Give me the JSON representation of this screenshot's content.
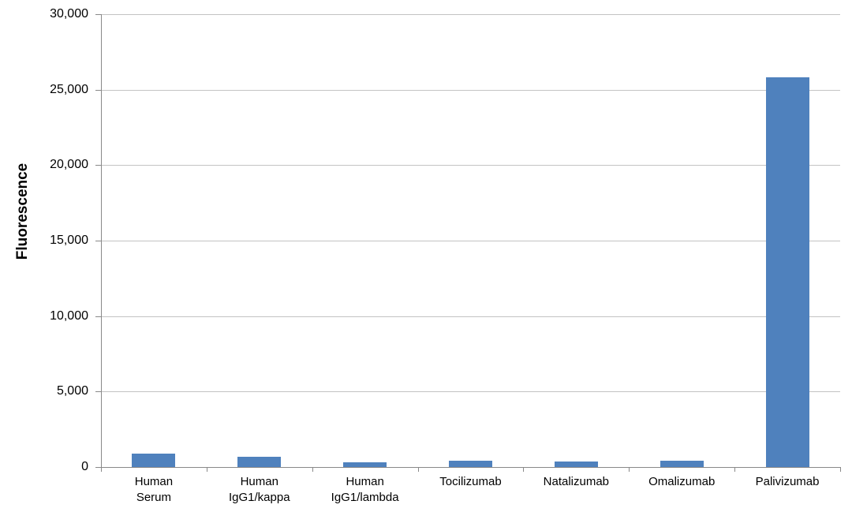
{
  "chart_data": {
    "type": "bar",
    "title": "",
    "xlabel": "",
    "ylabel": "Fluorescence",
    "categories": [
      "Human\nSerum",
      "Human\nIgG1/kappa",
      "Human\nIgG1/lambda",
      "Tocilizumab",
      "Natalizumab",
      "Omalizumab",
      "Palivizumab"
    ],
    "values": [
      880,
      690,
      310,
      440,
      350,
      440,
      25800
    ],
    "ylim": [
      0,
      30000
    ],
    "ytick_step": 5000,
    "ytick_labels": [
      "0",
      "5,000",
      "10,000",
      "15,000",
      "20,000",
      "25,000",
      "30,000"
    ],
    "grid": true,
    "legend": false,
    "colors": {
      "bar": "#4f81bd",
      "gridline": "#c3c3c3",
      "axis": "#898989",
      "text": "#000000",
      "background": "#ffffff"
    }
  }
}
